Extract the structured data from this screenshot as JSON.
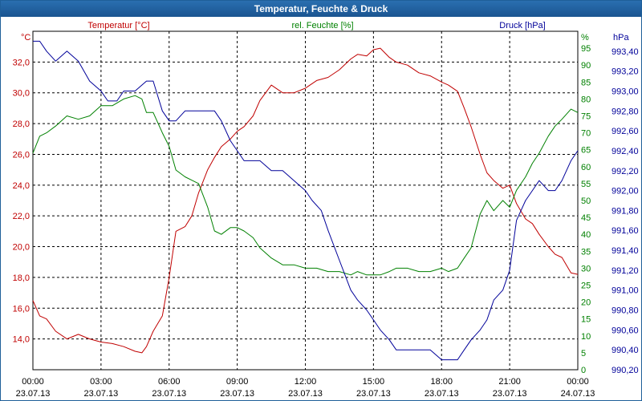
{
  "window": {
    "title": "Temperatur, Feuchte & Druck"
  },
  "chart_data": {
    "type": "line",
    "title": "Temperatur, Feuchte & Druck",
    "colors": {
      "temperature": "#c00000",
      "humidity": "#008000",
      "pressure": "#000099",
      "grid": "#000000",
      "frame": "#1f5f99"
    },
    "x_range_hours": [
      0,
      24
    ],
    "x_ticks": [
      {
        "hour": 0,
        "time": "00:00",
        "date": "23.07.13"
      },
      {
        "hour": 3,
        "time": "03:00",
        "date": "23.07.13"
      },
      {
        "hour": 6,
        "time": "06:00",
        "date": "23.07.13"
      },
      {
        "hour": 9,
        "time": "09:00",
        "date": "23.07.13"
      },
      {
        "hour": 12,
        "time": "12:00",
        "date": "23.07.13"
      },
      {
        "hour": 15,
        "time": "15:00",
        "date": "23.07.13"
      },
      {
        "hour": 18,
        "time": "18:00",
        "date": "23.07.13"
      },
      {
        "hour": 21,
        "time": "21:00",
        "date": "23.07.13"
      },
      {
        "hour": 24,
        "time": "00:00",
        "date": "24.07.13"
      }
    ],
    "axes": {
      "temperature": {
        "label": "Temperatur [°C]",
        "unit": "°C",
        "range": [
          12.0,
          34.0
        ],
        "ticks": [
          "14,0",
          "16,0",
          "18,0",
          "20,0",
          "22,0",
          "24,0",
          "26,0",
          "28,0",
          "30,0",
          "32,0"
        ],
        "tick_values": [
          14,
          16,
          18,
          20,
          22,
          24,
          26,
          28,
          30,
          32
        ]
      },
      "humidity": {
        "label": "rel. Feuchte [%]",
        "unit": "%",
        "range": [
          0,
          100
        ],
        "ticks": [
          "0",
          "5",
          "10",
          "15",
          "20",
          "25",
          "30",
          "35",
          "40",
          "45",
          "50",
          "55",
          "60",
          "65",
          "70",
          "75",
          "80",
          "85",
          "90",
          "95"
        ],
        "tick_values": [
          0,
          5,
          10,
          15,
          20,
          25,
          30,
          35,
          40,
          45,
          50,
          55,
          60,
          65,
          70,
          75,
          80,
          85,
          90,
          95
        ]
      },
      "pressure": {
        "label": "Druck [hPa]",
        "unit": "hPa",
        "range": [
          990.2,
          993.6
        ],
        "ticks": [
          "990,20",
          "990,40",
          "990,60",
          "990,80",
          "991,00",
          "991,20",
          "991,40",
          "991,60",
          "991,80",
          "992,00",
          "992,20",
          "992,40",
          "992,60",
          "992,80",
          "993,00",
          "993,20",
          "993,40"
        ],
        "tick_values": [
          990.2,
          990.4,
          990.6,
          990.8,
          991.0,
          991.2,
          991.4,
          991.6,
          991.8,
          992.0,
          992.2,
          992.4,
          992.6,
          992.8,
          993.0,
          993.2,
          993.4
        ]
      }
    },
    "series": [
      {
        "name": "Temperatur [°C]",
        "key": "temperature",
        "x": [
          0,
          0.3,
          0.6,
          1,
          1.5,
          2,
          2.5,
          3,
          3.5,
          4,
          4.5,
          4.8,
          5,
          5.3,
          5.7,
          6,
          6.3,
          6.7,
          7,
          7.3,
          7.7,
          8,
          8.3,
          8.7,
          9,
          9.3,
          9.7,
          10,
          10.5,
          11,
          11.5,
          12,
          12.5,
          13,
          13.5,
          14,
          14.3,
          14.7,
          15,
          15.3,
          15.7,
          16,
          16.5,
          17,
          17.5,
          18,
          18.3,
          18.7,
          19,
          19.3,
          19.7,
          20,
          20.3,
          20.7,
          21,
          21.3,
          21.7,
          22,
          22.3,
          22.7,
          23,
          23.3,
          23.7,
          24
        ],
        "values": [
          16.5,
          15.5,
          15.3,
          14.5,
          14.0,
          14.3,
          14.0,
          13.8,
          13.7,
          13.5,
          13.2,
          13.1,
          13.5,
          14.5,
          15.5,
          18.0,
          21.0,
          21.3,
          22.0,
          23.5,
          25.0,
          25.8,
          26.5,
          27.0,
          27.5,
          27.8,
          28.5,
          29.5,
          30.5,
          30.0,
          30.0,
          30.3,
          30.8,
          31.0,
          31.5,
          32.2,
          32.5,
          32.4,
          32.8,
          32.9,
          32.3,
          32.0,
          31.8,
          31.3,
          31.1,
          30.7,
          30.5,
          30.1,
          29.0,
          27.8,
          26.0,
          24.8,
          24.3,
          23.8,
          24.0,
          22.8,
          21.8,
          21.5,
          20.8,
          20.0,
          19.5,
          19.3,
          18.3,
          18.2
        ]
      },
      {
        "name": "rel. Feuchte [%]",
        "key": "humidity",
        "x": [
          0,
          0.3,
          0.6,
          1,
          1.5,
          2,
          2.5,
          3,
          3.5,
          4,
          4.5,
          4.8,
          5,
          5.3,
          5.7,
          6,
          6.3,
          6.7,
          7,
          7.3,
          7.7,
          8,
          8.3,
          8.7,
          9,
          9.3,
          9.7,
          10,
          10.5,
          11,
          11.5,
          12,
          12.5,
          13,
          13.5,
          14,
          14.3,
          14.7,
          15,
          15.3,
          15.7,
          16,
          16.5,
          17,
          17.5,
          18,
          18.3,
          18.7,
          19,
          19.3,
          19.7,
          20,
          20.3,
          20.7,
          21,
          21.3,
          21.7,
          22,
          22.3,
          22.7,
          23,
          23.3,
          23.7,
          24
        ],
        "values": [
          64,
          69,
          70,
          72,
          75,
          74,
          75,
          78,
          78,
          80,
          81,
          80,
          76,
          76,
          70,
          66,
          59,
          57,
          56,
          55,
          48,
          41,
          40,
          42,
          42,
          41,
          39,
          36,
          33,
          31,
          31,
          30,
          30,
          29,
          29,
          28,
          29,
          28,
          28,
          28,
          29,
          30,
          30,
          29,
          29,
          30,
          29,
          30,
          33,
          36,
          46,
          50,
          47,
          50,
          48,
          53,
          57,
          61,
          64,
          69,
          72,
          74,
          77,
          76
        ]
      },
      {
        "name": "Druck [hPa]",
        "key": "pressure",
        "x": [
          0,
          0.3,
          0.6,
          1,
          1.5,
          2,
          2.5,
          3,
          3.3,
          3.7,
          4,
          4.5,
          5,
          5.3,
          5.7,
          6,
          6.3,
          6.7,
          7,
          7.3,
          7.7,
          8,
          8.3,
          8.7,
          9,
          9.3,
          9.7,
          10,
          10.5,
          11,
          11.5,
          12,
          12.3,
          12.7,
          13,
          13.5,
          14,
          14.3,
          14.7,
          15,
          15.3,
          15.7,
          16,
          16.5,
          17,
          17.5,
          18,
          18.3,
          18.7,
          19,
          19.3,
          19.7,
          20,
          20.3,
          20.7,
          21,
          21.3,
          21.7,
          22,
          22.3,
          22.7,
          23,
          23.3,
          23.7,
          24
        ],
        "values": [
          993.5,
          993.5,
          993.4,
          993.3,
          993.4,
          993.3,
          993.1,
          993.0,
          992.9,
          992.9,
          993.0,
          993.0,
          993.1,
          993.1,
          992.8,
          992.7,
          992.7,
          992.8,
          992.8,
          992.8,
          992.8,
          992.8,
          992.7,
          992.5,
          992.4,
          992.3,
          992.3,
          992.3,
          992.2,
          992.2,
          992.1,
          992.0,
          991.9,
          991.8,
          991.6,
          991.3,
          991.0,
          990.9,
          990.8,
          990.7,
          990.6,
          990.5,
          990.4,
          990.4,
          990.4,
          990.4,
          990.3,
          990.3,
          990.3,
          990.4,
          990.5,
          990.6,
          990.7,
          990.9,
          991.0,
          991.2,
          991.7,
          991.9,
          992.0,
          992.1,
          992.0,
          992.0,
          992.1,
          992.3,
          992.4
        ]
      }
    ]
  }
}
